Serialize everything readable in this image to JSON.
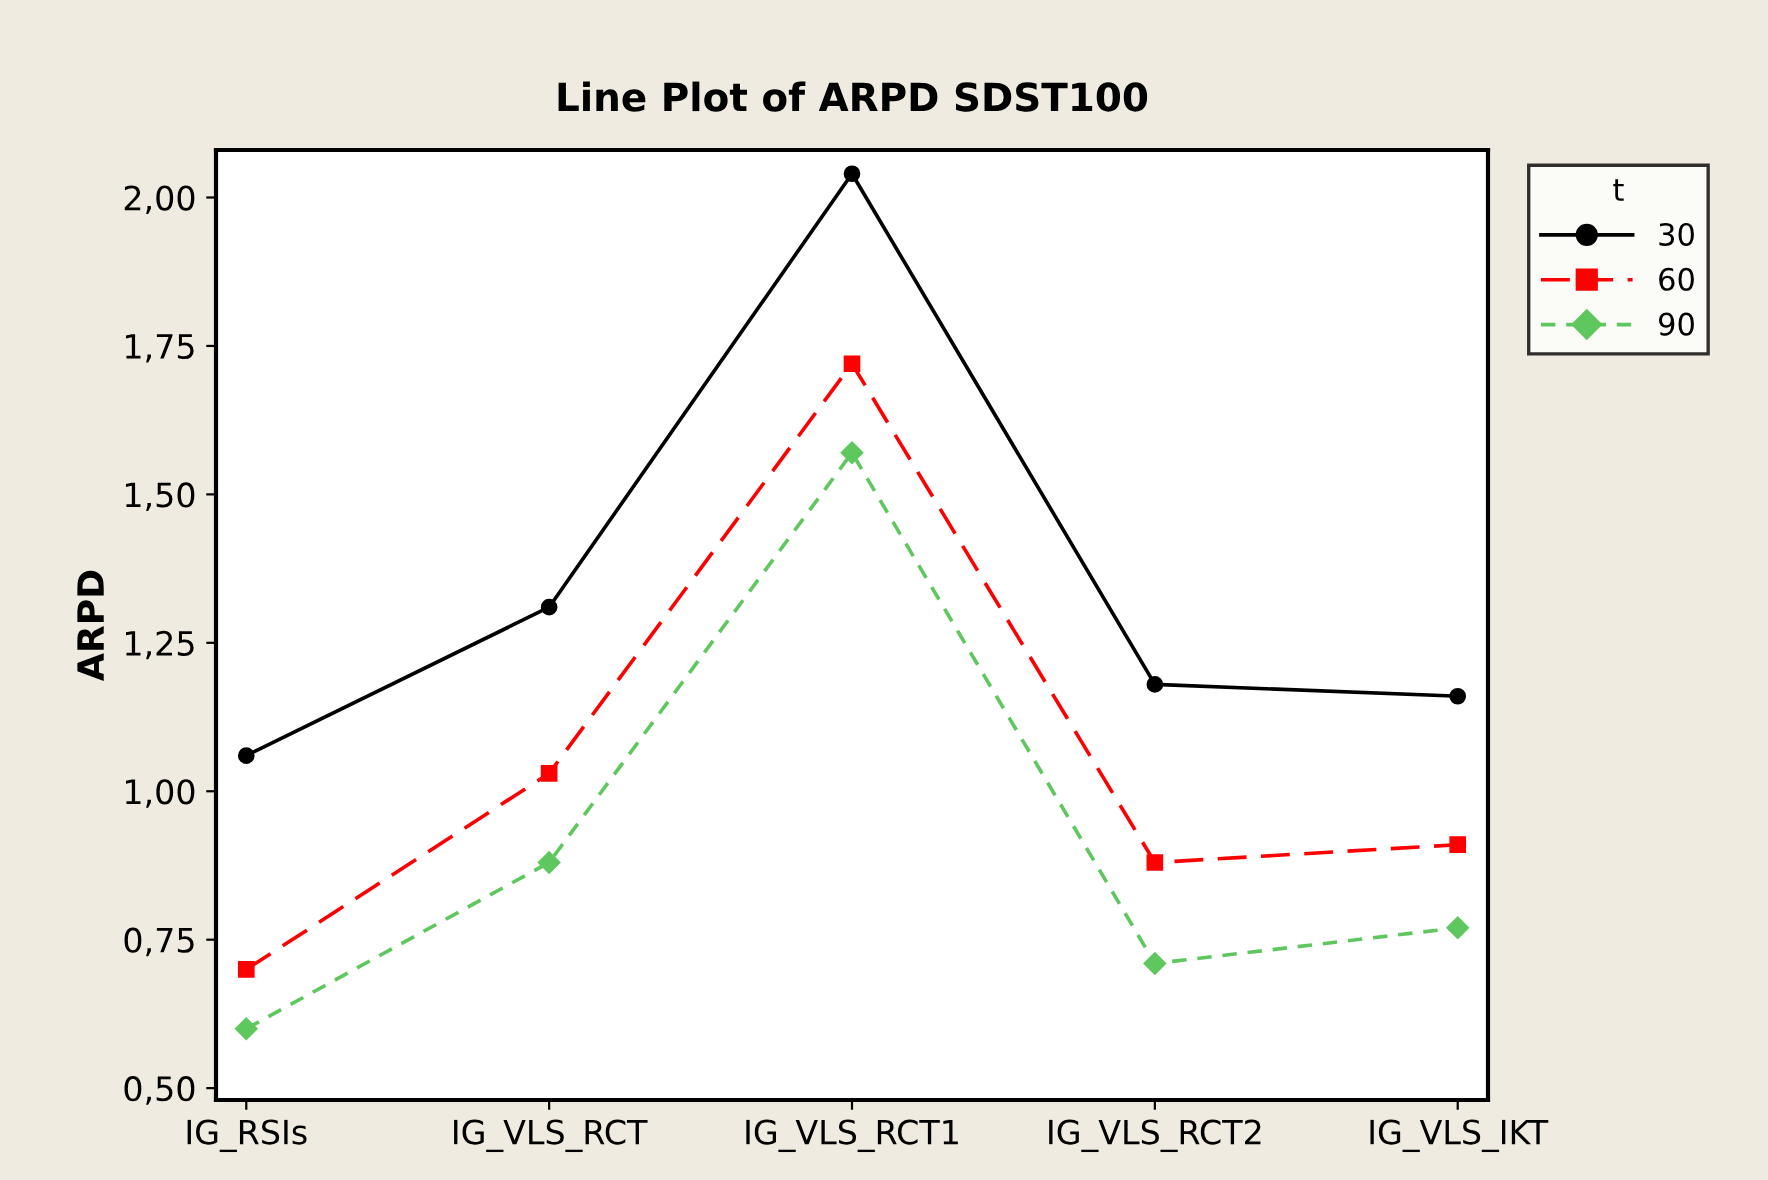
{
  "chart_data": {
    "type": "line",
    "title": "Line Plot of ARPD SDST100",
    "ylabel": "ARPD",
    "legend_title": "t",
    "legend": "top right",
    "categories": [
      "IG_RSIs",
      "IG_VLS_RCT",
      "IG_VLS_RCT1",
      "IG_VLS_RCT2",
      "IG_VLS_IKT"
    ],
    "ylim": [
      0.48,
      2.08
    ],
    "yticks": [
      {
        "value": 0.5,
        "label": "0,50"
      },
      {
        "value": 0.75,
        "label": "0,75"
      },
      {
        "value": 1.0,
        "label": "1,00"
      },
      {
        "value": 1.25,
        "label": "1,25"
      },
      {
        "value": 1.5,
        "label": "1,50"
      },
      {
        "value": 1.75,
        "label": "1,75"
      },
      {
        "value": 2.0,
        "label": "2,00"
      }
    ],
    "grid": false,
    "series": [
      {
        "name": "30",
        "color": "#000000",
        "marker": "circle",
        "line_style": "solid",
        "values": [
          1.06,
          1.31,
          2.04,
          1.18,
          1.16
        ]
      },
      {
        "name": "60",
        "color": "#ff0000",
        "marker": "square",
        "line_style": "dashed",
        "values": [
          0.7,
          1.03,
          1.72,
          0.88,
          0.91
        ]
      },
      {
        "name": "90",
        "color": "#5ec85e",
        "marker": "diamond",
        "line_style": "dotted",
        "values": [
          0.6,
          0.88,
          1.57,
          0.71,
          0.77
        ]
      }
    ]
  }
}
